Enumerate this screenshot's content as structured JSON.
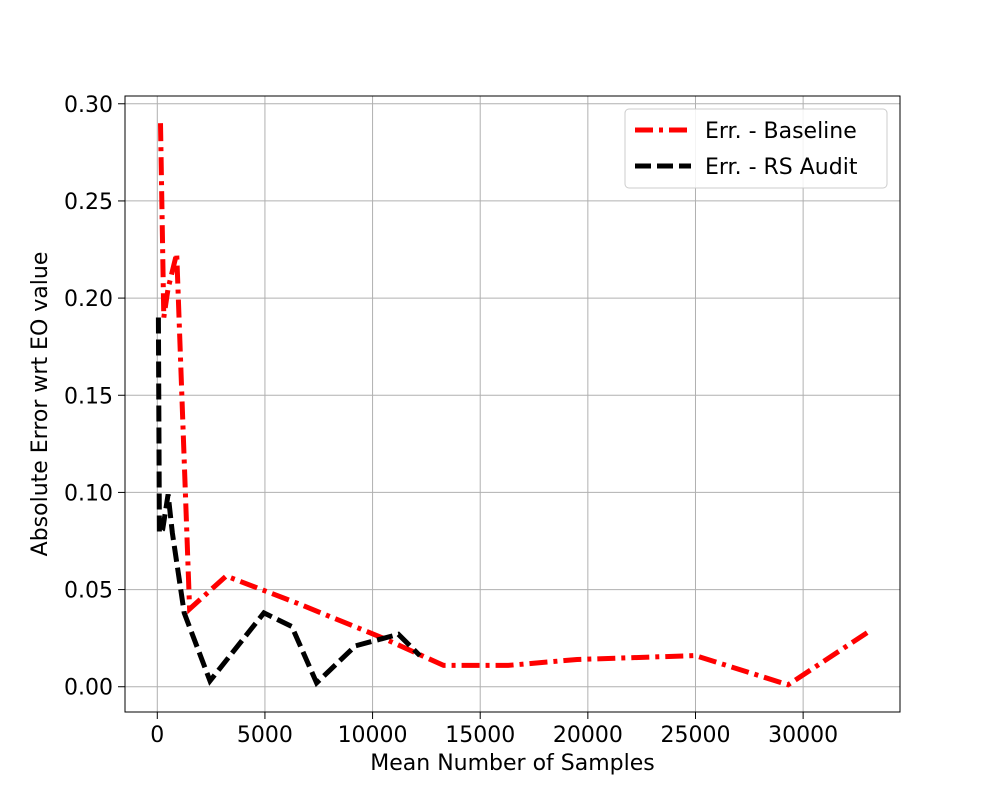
{
  "chart_data": {
    "type": "line",
    "xlabel": "Mean Number of Samples",
    "ylabel": "Absolute Error wrt EO value",
    "xlim": [
      -1500,
      34500
    ],
    "ylim": [
      -0.013,
      0.304
    ],
    "x_ticks": [
      0,
      5000,
      10000,
      15000,
      20000,
      25000,
      30000
    ],
    "y_ticks": [
      0.0,
      0.05,
      0.1,
      0.15,
      0.2,
      0.25,
      0.3
    ],
    "x_tick_labels": [
      "0",
      "5000",
      "10000",
      "15000",
      "20000",
      "25000",
      "30000"
    ],
    "y_tick_labels": [
      "0.00",
      "0.05",
      "0.10",
      "0.15",
      "0.20",
      "0.25",
      "0.30"
    ],
    "grid": true,
    "legend_position": "top-right",
    "series": [
      {
        "name": "Err. - Baseline",
        "color": "#ff0000",
        "style": "dashdot",
        "x": [
          150,
          300,
          500,
          900,
          1500,
          3200,
          6500,
          10500,
          13300,
          16300,
          19500,
          25000,
          29300,
          33000
        ],
        "y": [
          0.29,
          0.19,
          0.205,
          0.223,
          0.04,
          0.057,
          0.043,
          0.025,
          0.011,
          0.011,
          0.014,
          0.016,
          0.001,
          0.028
        ]
      },
      {
        "name": "Err. - RS Audit",
        "color": "#000000",
        "style": "dashed",
        "x": [
          50,
          100,
          250,
          500,
          700,
          1250,
          2450,
          4950,
          6250,
          7400,
          9200,
          11200,
          12200
        ],
        "y": [
          0.19,
          0.079,
          0.081,
          0.099,
          0.079,
          0.038,
          0.003,
          0.038,
          0.031,
          0.002,
          0.021,
          0.027,
          0.016
        ]
      }
    ]
  }
}
